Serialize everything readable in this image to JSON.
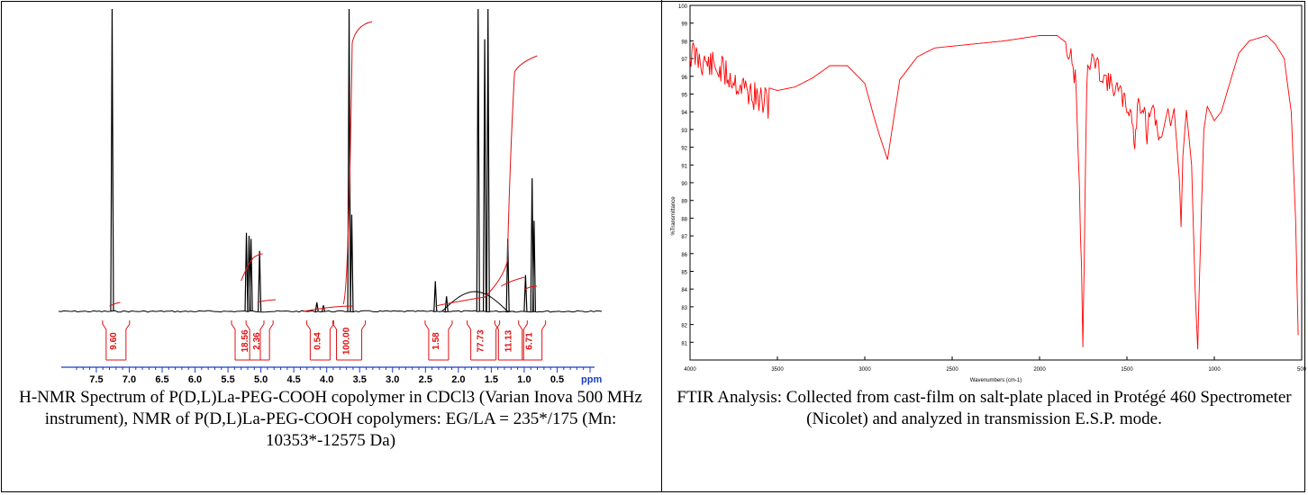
{
  "nmr": {
    "caption": "H-NMR Spectrum of P(D,L)La-PEG-COOH copolymer in CDCl3 (Varian Inova 500 MHz instrument), NMR of P(D,L)La-PEG-COOH copolymers: EG/LA = 235*/175 (Mn: 10353*-12575 Da)",
    "axis_unit": "ppm"
  },
  "ftir": {
    "caption": "FTIR Analysis: Collected from cast-film on salt-plate placed in Protégé 460 Spectrometer (Nicolet) and analyzed in transmission E.S.P. mode.",
    "xlabel": "Wavenumbers (cm-1)",
    "ylabel": "%Transmittance"
  },
  "colors": {
    "nmr_trace": "#000000",
    "integral": "#e01010",
    "ftir_trace": "#ff0000",
    "axis_blue": "#1a3cc8"
  },
  "chart_data": [
    {
      "type": "line",
      "xlabel": "ppm",
      "x_reversed": true,
      "xlim": [
        0.0,
        7.8
      ],
      "x_ticks": [
        "7.5",
        "7.0",
        "6.5",
        "6.0",
        "5.5",
        "5.0",
        "4.5",
        "4.0",
        "3.5",
        "3.0",
        "2.5",
        "2.0",
        "1.5",
        "1.0",
        "0.5"
      ],
      "peaks": [
        {
          "x": 7.26,
          "h": 1.0
        },
        {
          "x": 5.22,
          "h": 0.26
        },
        {
          "x": 5.18,
          "h": 0.25
        },
        {
          "x": 5.15,
          "h": 0.24
        },
        {
          "x": 5.02,
          "h": 0.2
        },
        {
          "x": 4.15,
          "h": 0.03
        },
        {
          "x": 4.05,
          "h": 0.02
        },
        {
          "x": 3.66,
          "h": 1.0
        },
        {
          "x": 3.62,
          "h": 0.32
        },
        {
          "x": 2.35,
          "h": 0.1
        },
        {
          "x": 2.18,
          "h": 0.05
        },
        {
          "x": 1.7,
          "h": 1.0
        },
        {
          "x": 1.6,
          "h": 0.9
        },
        {
          "x": 1.55,
          "h": 1.0
        },
        {
          "x": 1.25,
          "h": 0.24
        },
        {
          "x": 0.98,
          "h": 0.12
        },
        {
          "x": 0.88,
          "h": 0.44
        },
        {
          "x": 0.85,
          "h": 0.3
        }
      ],
      "integrals": [
        {
          "label": "9.60",
          "x": 7.2
        },
        {
          "label": "18.56",
          "x": 5.2
        },
        {
          "label": "2.36",
          "x": 5.02
        },
        {
          "label": "0.54",
          "x": 4.1
        },
        {
          "label": "100.00",
          "x": 3.66
        },
        {
          "label": "1.58",
          "x": 2.3
        },
        {
          "label": "77.73",
          "x": 1.62
        },
        {
          "label": "11.13",
          "x": 1.2
        },
        {
          "label": "6.71",
          "x": 0.88
        }
      ]
    },
    {
      "type": "line",
      "xlabel": "Wavenumbers (cm-1)",
      "ylabel": "%Transmittance",
      "x_reversed": true,
      "xlim": [
        500,
        4000
      ],
      "ylim": [
        80,
        100
      ],
      "x_ticks": [
        "4000",
        "3500",
        "3000",
        "2500",
        "2000",
        "1500",
        "1000",
        "500"
      ],
      "y_ticks": [
        "100",
        "99",
        "98",
        "97",
        "96",
        "95",
        "94",
        "93",
        "92",
        "91",
        "90",
        "89",
        "88",
        "87",
        "86",
        "85",
        "84",
        "83",
        "82",
        "81"
      ],
      "points": [
        [
          4000,
          98.2
        ],
        [
          3900,
          97.6
        ],
        [
          3800,
          97.1
        ],
        [
          3700,
          96.3
        ],
        [
          3600,
          95.5
        ],
        [
          3500,
          95.2
        ],
        [
          3400,
          95.4
        ],
        [
          3300,
          95.9
        ],
        [
          3200,
          96.6
        ],
        [
          3100,
          96.6
        ],
        [
          3000,
          95.6
        ],
        [
          2950,
          93.8
        ],
        [
          2920,
          92.8
        ],
        [
          2870,
          91.3
        ],
        [
          2850,
          92.6
        ],
        [
          2800,
          95.8
        ],
        [
          2700,
          97.1
        ],
        [
          2600,
          97.6
        ],
        [
          2400,
          97.8
        ],
        [
          2200,
          98.0
        ],
        [
          2000,
          98.3
        ],
        [
          1900,
          98.3
        ],
        [
          1820,
          97.7
        ],
        [
          1790,
          96.2
        ],
        [
          1760,
          86.0
        ],
        [
          1752,
          81.5
        ],
        [
          1745,
          86.0
        ],
        [
          1730,
          96.5
        ],
        [
          1700,
          97.6
        ],
        [
          1650,
          96.8
        ],
        [
          1600,
          96.2
        ],
        [
          1550,
          95.8
        ],
        [
          1500,
          94.9
        ],
        [
          1470,
          94.4
        ],
        [
          1455,
          92.3
        ],
        [
          1440,
          95.0
        ],
        [
          1400,
          94.9
        ],
        [
          1385,
          93.0
        ],
        [
          1370,
          94.6
        ],
        [
          1350,
          94.5
        ],
        [
          1300,
          92.6
        ],
        [
          1265,
          94.2
        ],
        [
          1250,
          93.2
        ],
        [
          1230,
          94.2
        ],
        [
          1200,
          90.2
        ],
        [
          1190,
          87.5
        ],
        [
          1180,
          91.5
        ],
        [
          1160,
          94.1
        ],
        [
          1130,
          91.0
        ],
        [
          1110,
          84.0
        ],
        [
          1095,
          80.6
        ],
        [
          1085,
          84.5
        ],
        [
          1060,
          93.0
        ],
        [
          1040,
          94.3
        ],
        [
          1000,
          93.5
        ],
        [
          960,
          94.0
        ],
        [
          900,
          96.0
        ],
        [
          860,
          97.3
        ],
        [
          800,
          98.0
        ],
        [
          700,
          98.3
        ],
        [
          650,
          97.8
        ],
        [
          600,
          97.0
        ],
        [
          560,
          94.0
        ],
        [
          535,
          88.0
        ],
        [
          520,
          81.4
        ]
      ]
    }
  ]
}
